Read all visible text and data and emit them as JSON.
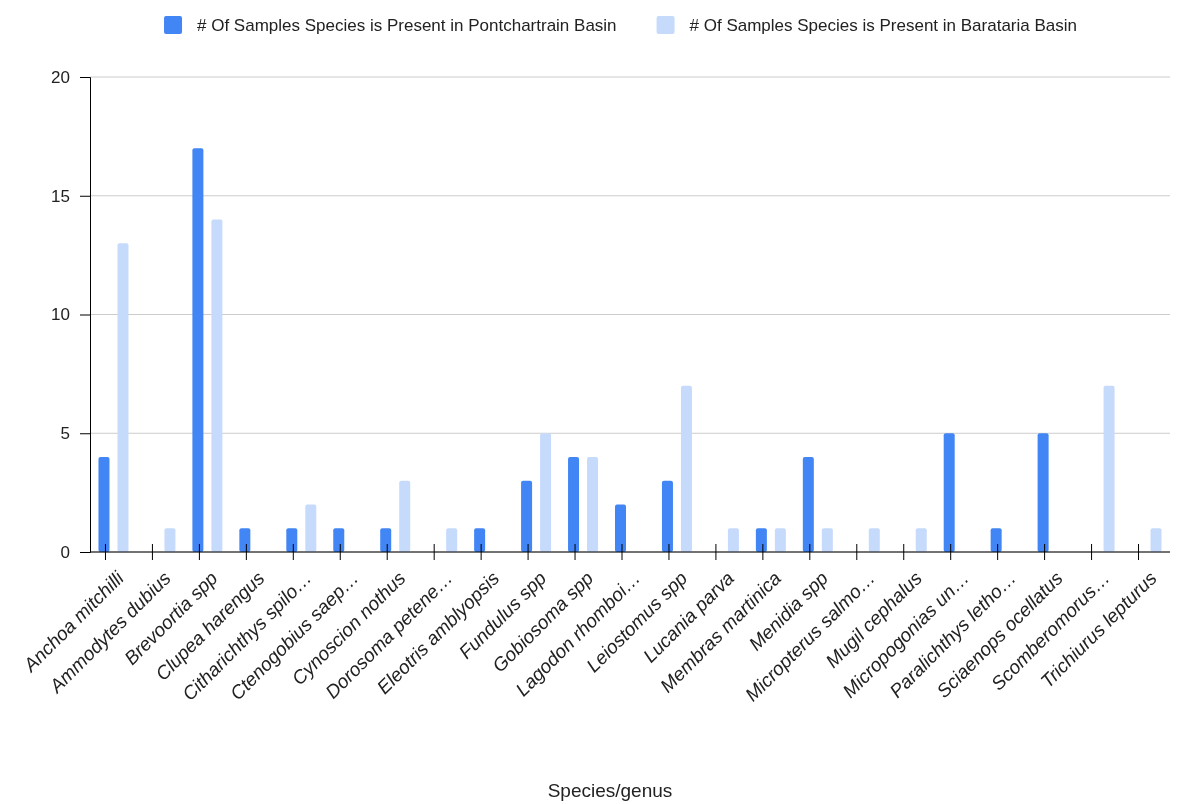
{
  "chart_data": {
    "type": "bar",
    "xlabel": "Species/genus",
    "categories": [
      "Anchoa mitchilli",
      "Ammodytes dubius",
      "Brevoortia spp",
      "Clupea harengus",
      "Citharichthys spilo…",
      "Ctenogobius saep…",
      "Cynoscion nothus",
      "Dorosoma petene…",
      "Eleotris amblyopsis",
      "Fundulus spp",
      "Gobiosoma spp",
      "Lagodon rhomboi…",
      "Leiostomus spp",
      "Lucania parva",
      "Membras martinica",
      "Menidia spp",
      "Micropterus salmo…",
      "Mugil cephalus",
      "Micropogonias un…",
      "Paralichthys letho…",
      "Sciaenops ocellatus",
      "Scomberomorus…",
      "Trichiurus lepturus"
    ],
    "series": [
      {
        "name": "# Of Samples Species is Present in Pontchartrain Basin",
        "color": "#4285f4",
        "values": [
          4,
          0,
          17,
          1,
          1,
          1,
          1,
          0,
          1,
          3,
          4,
          2,
          3,
          0,
          1,
          4,
          0,
          0,
          5,
          1,
          5,
          0,
          0
        ]
      },
      {
        "name": "# Of Samples Species is Present in Barataria Basin",
        "color": "#c6dafc",
        "values": [
          13,
          1,
          14,
          0,
          2,
          0,
          3,
          1,
          0,
          5,
          4,
          0,
          7,
          1,
          1,
          1,
          1,
          1,
          0,
          0,
          0,
          7,
          1
        ]
      }
    ],
    "ylim": [
      0,
      20
    ],
    "yticks": [
      0,
      5,
      10,
      15,
      20
    ],
    "grid": "y",
    "legend": "top"
  }
}
